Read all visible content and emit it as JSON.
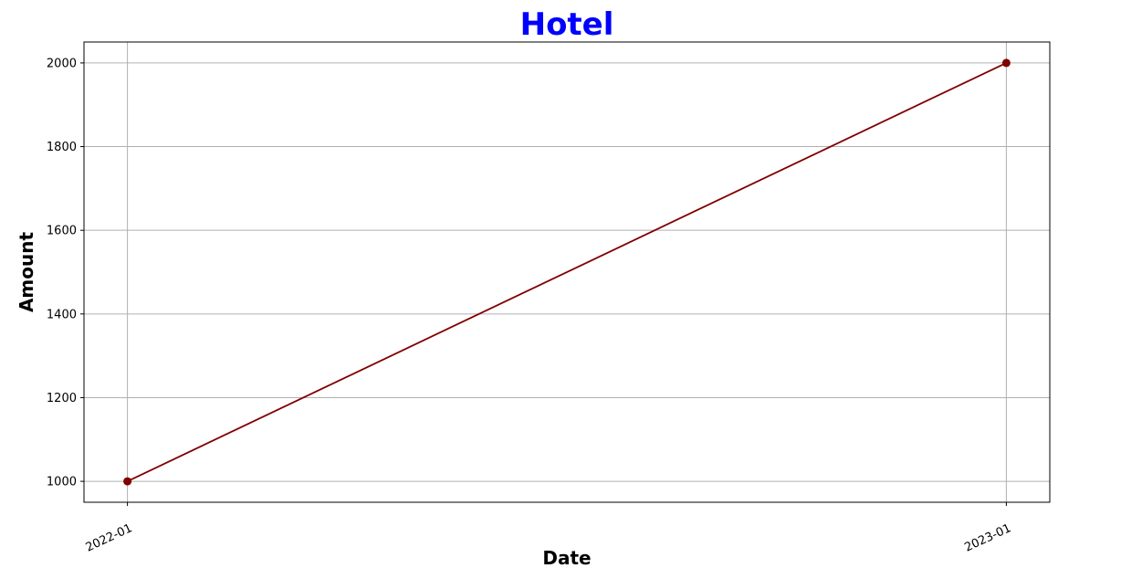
{
  "chart_data": {
    "type": "line",
    "title": "Hotel",
    "xlabel": "Date",
    "ylabel": "Amount",
    "x": [
      "2022-01",
      "2023-01"
    ],
    "series": [
      {
        "values": [
          1000,
          2000
        ],
        "color": "#800000",
        "marker": "circle"
      }
    ],
    "ylim": [
      950,
      2050
    ],
    "yticks": [
      1000,
      1200,
      1400,
      1600,
      1800,
      2000
    ],
    "xtick_labels": [
      "2022-01",
      "2023-01"
    ],
    "xtick_rotation": 25,
    "grid": true,
    "title_color": "#0000ff"
  }
}
